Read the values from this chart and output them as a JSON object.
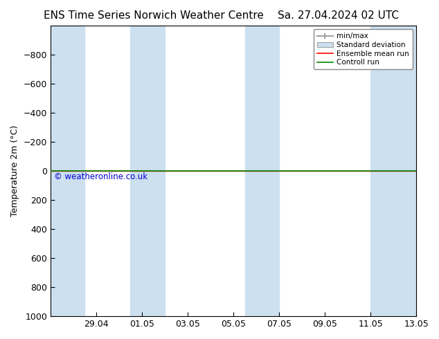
{
  "title_left": "ENS Time Series Norwich Weather Centre",
  "title_right": "Sa. 27.04.2024 02 UTC",
  "ylabel": "Temperature 2m (°C)",
  "ylim_bottom": 1000,
  "ylim_top": -1000,
  "yticks": [
    -800,
    -600,
    -400,
    -200,
    0,
    200,
    400,
    600,
    800,
    1000
  ],
  "xtick_labels": [
    "29.04",
    "01.05",
    "03.05",
    "05.05",
    "07.05",
    "09.05",
    "11.05",
    "13.05"
  ],
  "xtick_positions": [
    2,
    4,
    6,
    8,
    10,
    12,
    14,
    16
  ],
  "xlim": [
    0,
    16
  ],
  "shade_bands": [
    [
      0,
      1.5
    ],
    [
      3.5,
      5
    ],
    [
      8.5,
      10
    ],
    [
      14,
      16
    ]
  ],
  "shaded_color": "#cce0f0",
  "plot_bg_color": "#ffffff",
  "fig_bg_color": "#ffffff",
  "green_line_color": "#008800",
  "red_line_color": "#ff0000",
  "copyright_text": "© weatheronline.co.uk",
  "copyright_color": "#0000cc",
  "legend_entries": [
    "min/max",
    "Standard deviation",
    "Ensemble mean run",
    "Controll run"
  ],
  "font_size": 9,
  "title_font_size": 11
}
